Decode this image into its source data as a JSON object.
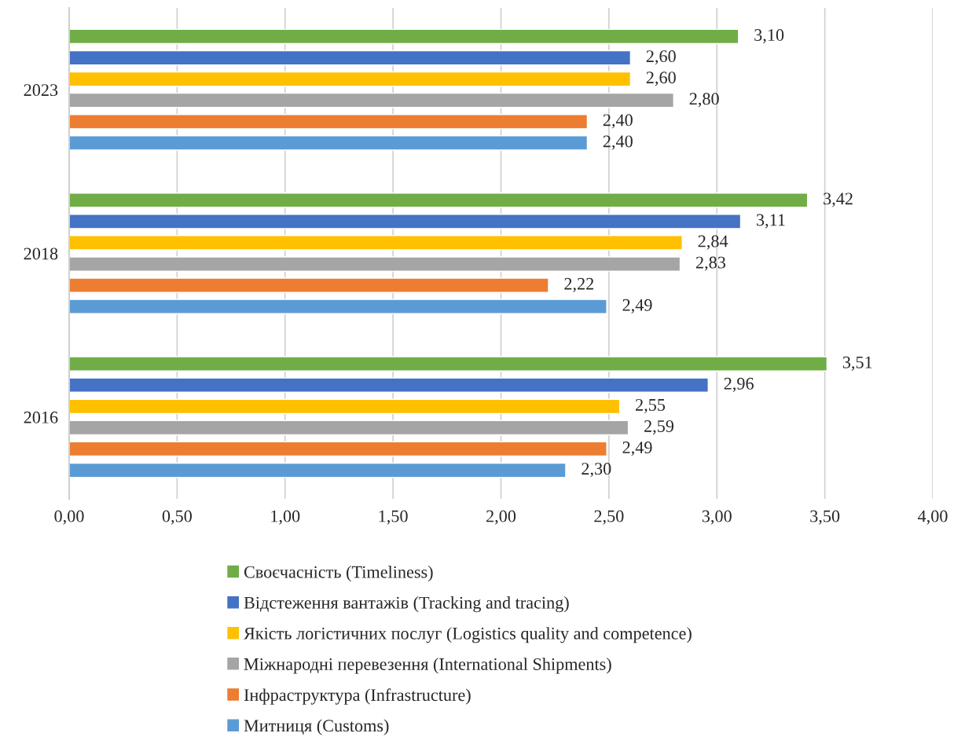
{
  "chart_data": {
    "type": "bar",
    "orientation": "horizontal",
    "categories": [
      "2023",
      "2018",
      "2016"
    ],
    "series": [
      {
        "name": "Своєчасність (Timeliness)",
        "color": "#70ad47",
        "values": [
          3.1,
          3.42,
          3.51
        ],
        "value_labels": [
          "3,10",
          "3,42",
          "3,51"
        ]
      },
      {
        "name": "Відстеження вантажів (Tracking and tracing)",
        "color": "#4472c4",
        "values": [
          2.6,
          3.11,
          2.96
        ],
        "value_labels": [
          "2,60",
          "3,11",
          "2,96"
        ]
      },
      {
        "name": "Якість логістичних послуг (Logistics quality and competence)",
        "color": "#ffc000",
        "values": [
          2.6,
          2.84,
          2.55
        ],
        "value_labels": [
          "2,60",
          "2,84",
          "2,55"
        ]
      },
      {
        "name": "Міжнародні перевезення (International Shipments)",
        "color": "#a5a5a5",
        "values": [
          2.8,
          2.83,
          2.59
        ],
        "value_labels": [
          "2,80",
          "2,83",
          "2,59"
        ]
      },
      {
        "name": "Інфраструктура (Infrastructure)",
        "color": "#ed7d31",
        "values": [
          2.4,
          2.22,
          2.49
        ],
        "value_labels": [
          "2,40",
          "2,22",
          "2,49"
        ]
      },
      {
        "name": "Митниця (Customs)",
        "color": "#5b9bd5",
        "values": [
          2.4,
          2.49,
          2.3
        ],
        "value_labels": [
          "2,40",
          "2,49",
          "2,30"
        ]
      }
    ],
    "xlim": [
      0,
      4
    ],
    "xticks": [
      {
        "value": 0,
        "label": "0,00"
      },
      {
        "value": 0.5,
        "label": "0,50"
      },
      {
        "value": 1,
        "label": "1,00"
      },
      {
        "value": 1.5,
        "label": "1,50"
      },
      {
        "value": 2,
        "label": "2,00"
      },
      {
        "value": 2.5,
        "label": "2,50"
      },
      {
        "value": 3,
        "label": "3,00"
      },
      {
        "value": 3.5,
        "label": "3,50"
      },
      {
        "value": 4,
        "label": "4,00"
      }
    ],
    "grid": "x",
    "legend": "bottom"
  }
}
